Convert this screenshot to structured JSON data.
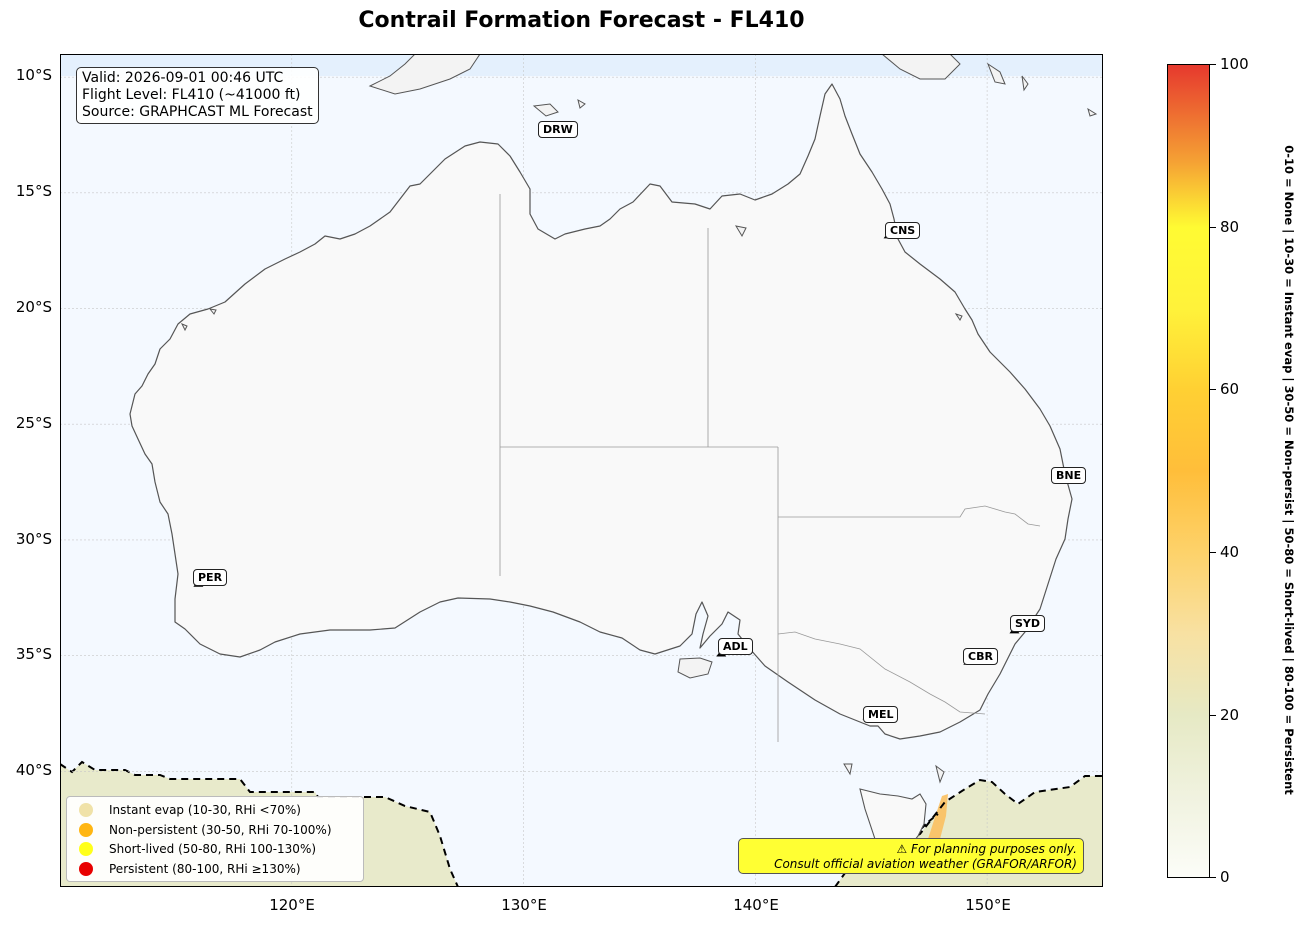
{
  "title": "Contrail Formation Forecast - FL410",
  "info": {
    "valid": "Valid: 2026-09-01 00:46 UTC",
    "flight_level": "Flight Level: FL410 (~41000 ft)",
    "source": "Source: GRAPHCAST ML Forecast"
  },
  "axes": {
    "lat_ticks": [
      "10°S",
      "15°S",
      "20°S",
      "25°S",
      "30°S",
      "35°S",
      "40°S"
    ],
    "lon_ticks": [
      "120°E",
      "130°E",
      "140°E",
      "150°E"
    ]
  },
  "airports": [
    {
      "code": "DRW",
      "lon": 130.84,
      "lat": -12.41
    },
    {
      "code": "CNS",
      "lon": 145.75,
      "lat": -16.88
    },
    {
      "code": "BNE",
      "lon": 153.12,
      "lat": -27.38
    },
    {
      "code": "PER",
      "lon": 115.97,
      "lat": -31.94
    },
    {
      "code": "SYD",
      "lon": 151.18,
      "lat": -33.95
    },
    {
      "code": "ADL",
      "lon": 138.53,
      "lat": -34.95
    },
    {
      "code": "CBR",
      "lon": 149.19,
      "lat": -35.31
    },
    {
      "code": "MEL",
      "lon": 144.84,
      "lat": -37.67
    }
  ],
  "legend": [
    {
      "label": "Instant evap (10-30, RHi <70%)",
      "color": "#f0e2a8"
    },
    {
      "label": "Non-persistent (30-50, RHi 70-100%)",
      "color": "#ffb612"
    },
    {
      "label": "Short-lived (50-80, RHi 100-130%)",
      "color": "#ffff1a"
    },
    {
      "label": "Persistent (80-100, RHi ≥130%)",
      "color": "#e80000"
    }
  ],
  "disclaimer": {
    "line1": "⚠ For planning purposes only.",
    "line2": "Consult official aviation weather (GRAFOR/ARFOR)"
  },
  "colorbar": {
    "min": 0,
    "max": 100,
    "ticks": [
      "0",
      "20",
      "40",
      "60",
      "80",
      "100"
    ],
    "description": "0-10 = None  |  10-30 = Instant evap  |  30-50 = Non-persist  |  50-80 = Short-lived  |  80-100 = Persistent"
  },
  "map_extent": {
    "lon": [
      110,
      155
    ],
    "lat": [
      -45,
      -9
    ]
  },
  "colors": {
    "ocean": "#f4f9ff",
    "land": "#f9f9f9",
    "coast": "#555555",
    "state_border": "#999999",
    "contour": "#000000"
  }
}
